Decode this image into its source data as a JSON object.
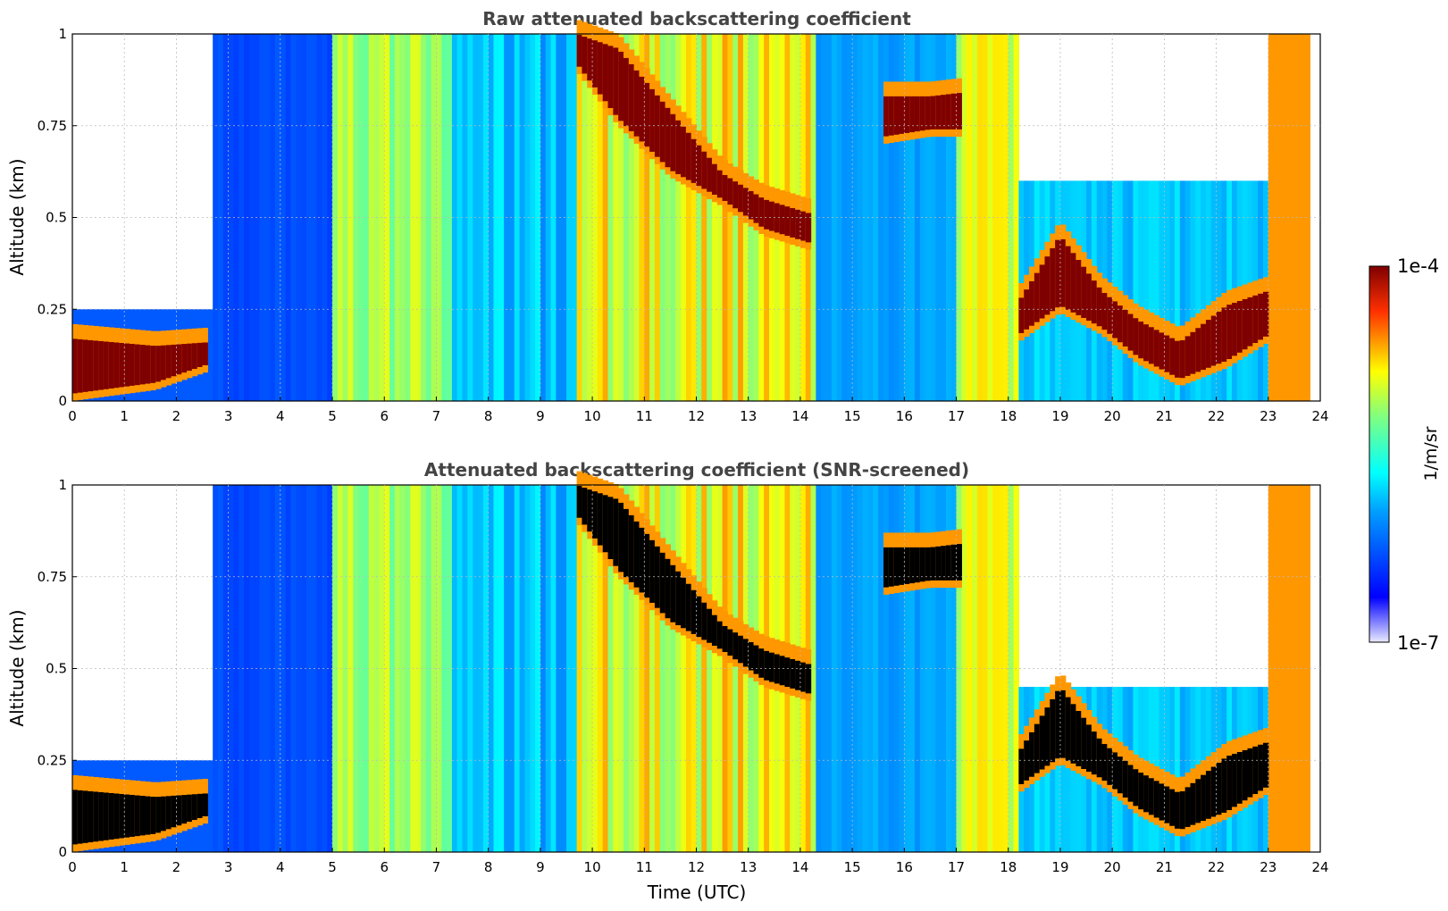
{
  "figure": {
    "xlabel": "Time (UTC)",
    "colorbar": {
      "min_label": "1e-7",
      "max_label": "1e-4",
      "units": "1/m/sr",
      "scale": "log",
      "colormap": "jet"
    }
  },
  "chart_data": [
    {
      "type": "heatmap",
      "title": "Raw attenuated backscattering coefficient",
      "xlabel": "",
      "ylabel": "Altitude (km)",
      "xlim": [
        0,
        24
      ],
      "ylim": [
        0,
        1
      ],
      "x_ticks": [
        "0",
        "1",
        "2",
        "3",
        "4",
        "5",
        "6",
        "7",
        "8",
        "9",
        "10",
        "11",
        "12",
        "13",
        "14",
        "15",
        "16",
        "17",
        "18",
        "19",
        "20",
        "21",
        "22",
        "23",
        "24"
      ],
      "y_ticks": [
        "0",
        "0.25",
        "0.5",
        "0.75",
        "1"
      ],
      "grid": true,
      "cloud_layers": [
        {
          "time": [
            0.0,
            1.6,
            2.6
          ],
          "base": [
            0.02,
            0.05,
            0.1
          ],
          "top": [
            0.17,
            0.15,
            0.16
          ]
        },
        {
          "time": [
            9.7,
            10.5,
            11.5,
            12.5,
            13.3,
            14.2
          ],
          "base": [
            0.92,
            0.77,
            0.63,
            0.55,
            0.47,
            0.43
          ],
          "top": [
            1.0,
            0.96,
            0.79,
            0.62,
            0.55,
            0.51
          ]
        },
        {
          "time": [
            15.6,
            16.5,
            17.1
          ],
          "base": [
            0.72,
            0.74,
            0.74
          ],
          "top": [
            0.83,
            0.83,
            0.84
          ]
        },
        {
          "time": [
            18.2,
            19.0,
            19.8,
            20.5,
            21.3,
            22.2,
            23.0
          ],
          "base": [
            0.18,
            0.26,
            0.2,
            0.12,
            0.06,
            0.11,
            0.18
          ],
          "top": [
            0.27,
            0.45,
            0.3,
            0.22,
            0.16,
            0.26,
            0.3
          ]
        }
      ],
      "value_range_log10": [
        -7,
        -4
      ]
    },
    {
      "type": "heatmap",
      "title": "Attenuated backscattering coefficient (SNR-screened)",
      "xlabel": "Time (UTC)",
      "ylabel": "Altitude (km)",
      "xlim": [
        0,
        24
      ],
      "ylim": [
        0,
        1
      ],
      "x_ticks": [
        "0",
        "1",
        "2",
        "3",
        "4",
        "5",
        "6",
        "7",
        "8",
        "9",
        "10",
        "11",
        "12",
        "13",
        "14",
        "15",
        "16",
        "17",
        "18",
        "19",
        "20",
        "21",
        "22",
        "23",
        "24"
      ],
      "y_ticks": [
        "0",
        "0.25",
        "0.5",
        "0.75",
        "1"
      ],
      "grid": true,
      "cloud_layers": [
        {
          "time": [
            0.0,
            1.6,
            2.6
          ],
          "base": [
            0.02,
            0.05,
            0.1
          ],
          "top": [
            0.17,
            0.15,
            0.16
          ]
        },
        {
          "time": [
            9.7,
            10.5,
            11.5,
            12.5,
            13.3,
            14.2
          ],
          "base": [
            0.92,
            0.77,
            0.63,
            0.55,
            0.47,
            0.43
          ],
          "top": [
            1.0,
            0.96,
            0.79,
            0.62,
            0.55,
            0.51
          ]
        },
        {
          "time": [
            15.6,
            16.5,
            17.1
          ],
          "base": [
            0.72,
            0.74,
            0.74
          ],
          "top": [
            0.83,
            0.83,
            0.84
          ]
        },
        {
          "time": [
            18.2,
            19.0,
            19.8,
            20.5,
            21.3,
            22.2,
            23.0
          ],
          "base": [
            0.18,
            0.26,
            0.2,
            0.12,
            0.06,
            0.11,
            0.18
          ],
          "top": [
            0.27,
            0.45,
            0.3,
            0.22,
            0.16,
            0.26,
            0.3
          ]
        }
      ],
      "screened_fill": "#000000",
      "value_range_log10": [
        -7,
        -4
      ]
    }
  ]
}
